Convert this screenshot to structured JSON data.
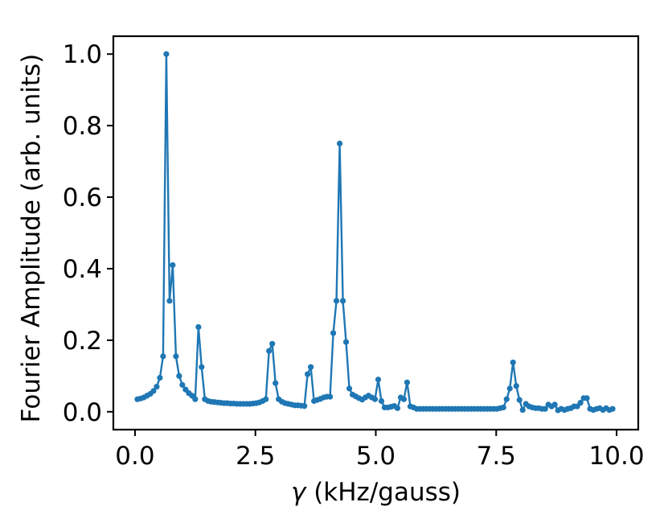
{
  "chart_data": {
    "type": "line",
    "title": "",
    "xlabel_symbol": "γ",
    "xlabel_rest": " (kHz/gauss)",
    "ylabel": "Fourier Amplitude (arb. units)",
    "xlim": [
      -0.45,
      10.45
    ],
    "ylim": [
      -0.05,
      1.05
    ],
    "xticks": [
      0.0,
      2.5,
      5.0,
      7.5,
      10.0
    ],
    "xtick_labels": [
      "0.0",
      "2.5",
      "5.0",
      "7.5",
      "10.0"
    ],
    "yticks": [
      0.0,
      0.2,
      0.4,
      0.6,
      0.8,
      1.0
    ],
    "ytick_labels": [
      "0.0",
      "0.2",
      "0.4",
      "0.6",
      "0.8",
      "1.0"
    ],
    "grid": false,
    "series": [
      {
        "color": "#1f77b4",
        "marker": "circle",
        "x": [
          0.05,
          0.117,
          0.183,
          0.25,
          0.317,
          0.383,
          0.45,
          0.517,
          0.583,
          0.65,
          0.717,
          0.783,
          0.85,
          0.917,
          0.983,
          1.05,
          1.117,
          1.183,
          1.25,
          1.317,
          1.383,
          1.45,
          1.517,
          1.583,
          1.65,
          1.717,
          1.783,
          1.85,
          1.917,
          1.983,
          2.05,
          2.117,
          2.183,
          2.25,
          2.317,
          2.383,
          2.45,
          2.517,
          2.583,
          2.65,
          2.717,
          2.783,
          2.85,
          2.917,
          2.983,
          3.05,
          3.117,
          3.183,
          3.25,
          3.317,
          3.383,
          3.45,
          3.517,
          3.583,
          3.65,
          3.717,
          3.783,
          3.85,
          3.917,
          3.983,
          4.05,
          4.117,
          4.183,
          4.25,
          4.317,
          4.383,
          4.45,
          4.517,
          4.583,
          4.65,
          4.717,
          4.783,
          4.85,
          4.917,
          4.983,
          5.05,
          5.117,
          5.183,
          5.25,
          5.317,
          5.383,
          5.45,
          5.517,
          5.583,
          5.65,
          5.717,
          5.783,
          5.85,
          5.917,
          5.983,
          6.05,
          6.117,
          6.183,
          6.25,
          6.317,
          6.383,
          6.45,
          6.517,
          6.583,
          6.65,
          6.717,
          6.783,
          6.85,
          6.917,
          6.983,
          7.05,
          7.117,
          7.183,
          7.25,
          7.317,
          7.383,
          7.45,
          7.517,
          7.583,
          7.65,
          7.717,
          7.783,
          7.85,
          7.917,
          7.983,
          8.05,
          8.117,
          8.183,
          8.25,
          8.317,
          8.383,
          8.45,
          8.517,
          8.583,
          8.65,
          8.717,
          8.783,
          8.85,
          8.917,
          8.983,
          9.05,
          9.117,
          9.183,
          9.25,
          9.317,
          9.383,
          9.45,
          9.517,
          9.583,
          9.65,
          9.717,
          9.783,
          9.85,
          9.917
        ],
        "y": [
          0.035,
          0.037,
          0.04,
          0.045,
          0.05,
          0.058,
          0.07,
          0.095,
          0.155,
          1.0,
          0.31,
          0.41,
          0.155,
          0.1,
          0.075,
          0.062,
          0.052,
          0.045,
          0.035,
          0.237,
          0.125,
          0.035,
          0.03,
          0.028,
          0.027,
          0.026,
          0.025,
          0.024,
          0.024,
          0.023,
          0.023,
          0.022,
          0.022,
          0.022,
          0.022,
          0.022,
          0.023,
          0.024,
          0.026,
          0.03,
          0.035,
          0.17,
          0.19,
          0.08,
          0.035,
          0.028,
          0.024,
          0.022,
          0.02,
          0.018,
          0.018,
          0.017,
          0.016,
          0.105,
          0.125,
          0.03,
          0.033,
          0.036,
          0.04,
          0.042,
          0.042,
          0.22,
          0.31,
          0.75,
          0.31,
          0.195,
          0.065,
          0.048,
          0.043,
          0.038,
          0.034,
          0.04,
          0.045,
          0.04,
          0.035,
          0.09,
          0.03,
          0.012,
          0.012,
          0.014,
          0.016,
          0.01,
          0.04,
          0.035,
          0.082,
          0.015,
          0.012,
          0.008,
          0.008,
          0.008,
          0.008,
          0.008,
          0.008,
          0.008,
          0.008,
          0.008,
          0.008,
          0.008,
          0.008,
          0.008,
          0.008,
          0.008,
          0.008,
          0.008,
          0.008,
          0.008,
          0.008,
          0.008,
          0.008,
          0.008,
          0.008,
          0.008,
          0.008,
          0.01,
          0.012,
          0.035,
          0.065,
          0.138,
          0.072,
          0.033,
          0.005,
          0.022,
          0.015,
          0.012,
          0.01,
          0.01,
          0.008,
          0.008,
          0.02,
          0.015,
          0.02,
          0.004,
          0.008,
          0.005,
          0.008,
          0.01,
          0.015,
          0.015,
          0.025,
          0.038,
          0.038,
          0.008,
          0.005,
          0.008,
          0.01,
          0.005,
          0.01,
          0.005,
          0.008
        ]
      }
    ]
  }
}
